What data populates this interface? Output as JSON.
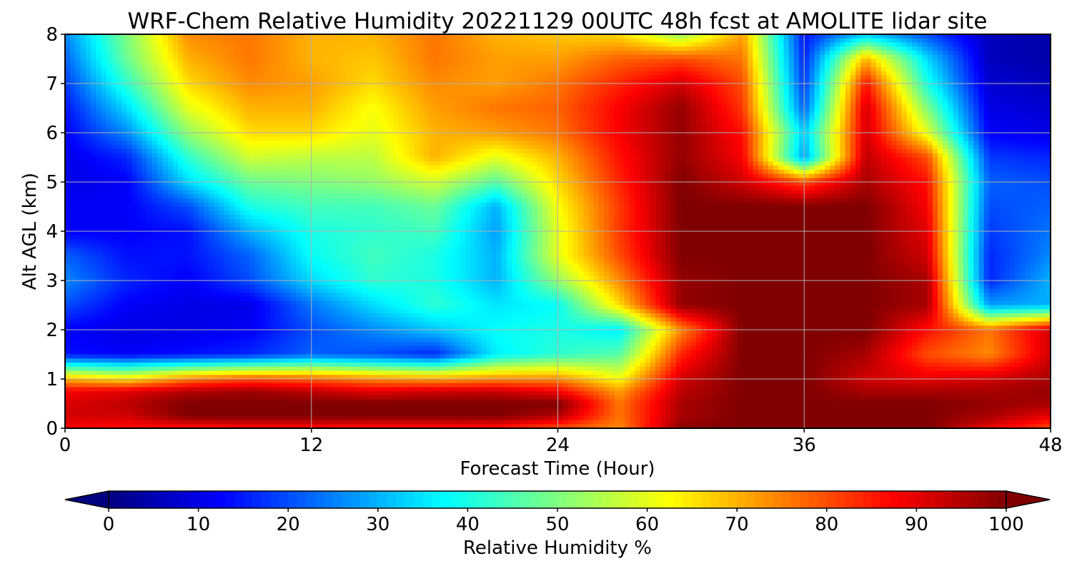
{
  "chart_data": {
    "type": "heatmap",
    "title": "WRF-Chem Relative Humidity 20221129 00UTC 48h fcst at AMOLITE lidar site",
    "xlabel": "Forecast Time (Hour)",
    "ylabel": "Alt AGL (km)",
    "xlim": [
      0,
      48
    ],
    "ylim": [
      0,
      8
    ],
    "x_ticks": [
      "0",
      "12",
      "24",
      "36",
      "48"
    ],
    "y_ticks": [
      "0",
      "1",
      "2",
      "3",
      "4",
      "5",
      "6",
      "7",
      "8"
    ],
    "grid": true,
    "colormap": "jet",
    "colorbar": {
      "label": "Relative Humidity %",
      "range": [
        0,
        100
      ],
      "ticks": [
        "0",
        "10",
        "20",
        "30",
        "40",
        "50",
        "60",
        "70",
        "80",
        "90",
        "100"
      ],
      "extend": "both",
      "orientation": "horizontal"
    },
    "x": [
      0,
      3,
      6,
      9,
      12,
      15,
      18,
      21,
      24,
      27,
      30,
      33,
      36,
      39,
      42,
      45,
      48
    ],
    "y": [
      0,
      0.25,
      0.5,
      0.75,
      1,
      1.5,
      2,
      2.5,
      3,
      3.5,
      4,
      4.5,
      5,
      5.5,
      6,
      6.5,
      7,
      7.5,
      8
    ],
    "z": [
      [
        88,
        86,
        86,
        87,
        87,
        86,
        86,
        85,
        80,
        74,
        99,
        100,
        100,
        100,
        100,
        90,
        80
      ],
      [
        92,
        92,
        100,
        100,
        100,
        100,
        100,
        100,
        95,
        76,
        96,
        100,
        100,
        100,
        100,
        96,
        90
      ],
      [
        91,
        94,
        100,
        100,
        100,
        100,
        100,
        100,
        100,
        76,
        96,
        100,
        100,
        100,
        100,
        98,
        96
      ],
      [
        88,
        90,
        95,
        97,
        94,
        90,
        92,
        93,
        88,
        72,
        94,
        100,
        100,
        96,
        96,
        96,
        98
      ],
      [
        70,
        65,
        75,
        80,
        78,
        74,
        72,
        74,
        74,
        62,
        92,
        100,
        100,
        92,
        90,
        92,
        96
      ],
      [
        14,
        12,
        14,
        16,
        22,
        20,
        16,
        36,
        42,
        46,
        84,
        100,
        100,
        96,
        80,
        74,
        92
      ],
      [
        12,
        10,
        10,
        12,
        20,
        26,
        32,
        38,
        40,
        36,
        74,
        100,
        100,
        100,
        86,
        76,
        92
      ],
      [
        20,
        12,
        10,
        10,
        24,
        34,
        42,
        35,
        38,
        66,
        98,
        100,
        100,
        100,
        96,
        28,
        30
      ],
      [
        26,
        16,
        12,
        20,
        34,
        42,
        40,
        30,
        52,
        74,
        98,
        100,
        100,
        100,
        96,
        16,
        30
      ],
      [
        22,
        14,
        14,
        22,
        38,
        44,
        40,
        30,
        60,
        80,
        100,
        100,
        100,
        100,
        92,
        16,
        26
      ],
      [
        12,
        12,
        14,
        30,
        40,
        42,
        44,
        28,
        60,
        82,
        100,
        100,
        100,
        100,
        90,
        18,
        24
      ],
      [
        12,
        12,
        20,
        40,
        44,
        44,
        48,
        30,
        62,
        82,
        100,
        100,
        100,
        100,
        88,
        20,
        22
      ],
      [
        10,
        12,
        34,
        48,
        50,
        52,
        58,
        46,
        66,
        84,
        100,
        92,
        80,
        96,
        86,
        22,
        20
      ],
      [
        10,
        16,
        42,
        58,
        56,
        56,
        70,
        60,
        70,
        86,
        98,
        88,
        28,
        94,
        80,
        18,
        16
      ],
      [
        12,
        26,
        52,
        66,
        66,
        60,
        70,
        72,
        76,
        88,
        98,
        86,
        32,
        92,
        60,
        12,
        10
      ],
      [
        14,
        34,
        60,
        70,
        70,
        62,
        72,
        76,
        78,
        88,
        98,
        82,
        22,
        92,
        50,
        10,
        8
      ],
      [
        18,
        42,
        66,
        74,
        72,
        66,
        74,
        72,
        76,
        84,
        92,
        80,
        18,
        86,
        40,
        8,
        6
      ],
      [
        22,
        48,
        70,
        76,
        70,
        68,
        76,
        72,
        72,
        78,
        80,
        76,
        16,
        70,
        34,
        6,
        4
      ],
      [
        26,
        50,
        74,
        76,
        70,
        70,
        76,
        70,
        68,
        66,
        52,
        72,
        14,
        32,
        20,
        6,
        4
      ]
    ]
  }
}
